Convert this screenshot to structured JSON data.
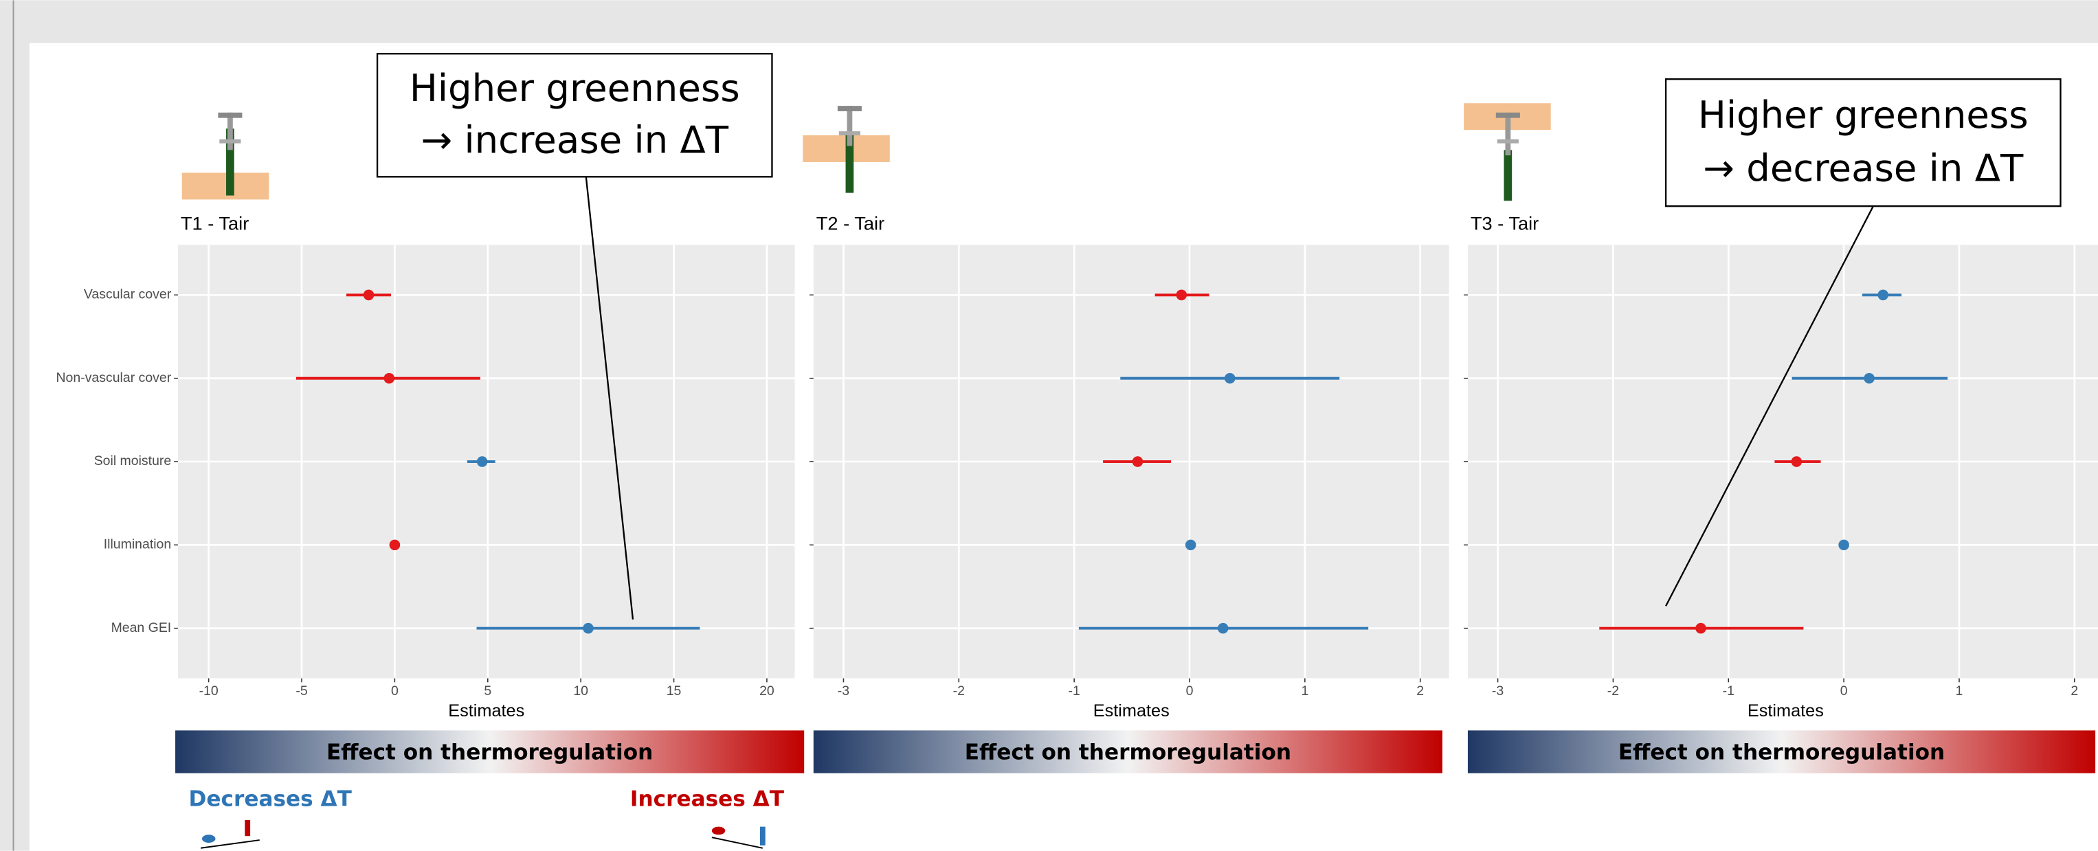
{
  "chart_data": [
    {
      "type": "forest",
      "title": "T1 - Tair",
      "x_label": "Estimates",
      "categories": [
        "Vascular cover",
        "Non-vascular cover",
        "Soil moisture",
        "Illumination",
        "Mean GEI"
      ],
      "values": [
        -1.4,
        -0.3,
        4.7,
        0.0,
        10.4
      ],
      "lower": [
        -2.6,
        -5.3,
        3.9,
        0.0,
        4.4
      ],
      "upper": [
        -0.2,
        4.6,
        5.4,
        0.0,
        16.4
      ],
      "colors": [
        "#e41a1c",
        "#e41a1c",
        "#377eb8",
        "#e41a1c",
        "#377eb8"
      ],
      "xlim": [
        -11.65,
        21.5
      ],
      "xticks": [
        -10,
        -5,
        0,
        5,
        10,
        15,
        20
      ],
      "grid": true,
      "colorbar_label": "Effect on thermoregulation",
      "annotation": {
        "lines": [
          "Higher greenness",
          "→ increase in ΔT"
        ]
      }
    },
    {
      "type": "forest",
      "title": "T2 - Tair",
      "x_label": "Estimates",
      "categories": [
        null,
        null,
        null,
        null,
        null
      ],
      "values": [
        -0.07,
        0.35,
        -0.45,
        0.01,
        0.29
      ],
      "lower": [
        -0.3,
        -0.6,
        -0.75,
        0.01,
        -0.96
      ],
      "upper": [
        0.17,
        1.3,
        -0.16,
        0.01,
        1.55
      ],
      "colors": [
        "#e41a1c",
        "#377eb8",
        "#e41a1c",
        "#377eb8",
        "#377eb8"
      ],
      "xlim": [
        -3.26,
        2.25
      ],
      "xticks": [
        -3,
        -2,
        -1,
        0,
        1,
        2
      ],
      "grid": true,
      "colorbar_label": "Effect on thermoregulation"
    },
    {
      "type": "forest",
      "title": "T3 - Tair",
      "x_label": "Estimates",
      "categories": [
        null,
        null,
        null,
        null,
        null
      ],
      "values": [
        0.34,
        0.22,
        -0.41,
        0.0,
        -1.24
      ],
      "lower": [
        0.16,
        -0.45,
        -0.6,
        0.0,
        -2.12
      ],
      "upper": [
        0.5,
        0.9,
        -0.2,
        0.0,
        -0.35
      ],
      "colors": [
        "#377eb8",
        "#377eb8",
        "#e41a1c",
        "#377eb8",
        "#e41a1c"
      ],
      "xlim": [
        -3.26,
        2.25
      ],
      "xticks": [
        -3,
        -2,
        -1,
        0,
        1,
        2
      ],
      "grid": true,
      "colorbar_label": "Effect on thermoregulation",
      "annotation": {
        "lines": [
          "Higher greenness",
          "→ decrease in ΔT"
        ]
      }
    }
  ],
  "legend": {
    "left": "Decreases ΔT",
    "right": "Increases ΔT"
  }
}
